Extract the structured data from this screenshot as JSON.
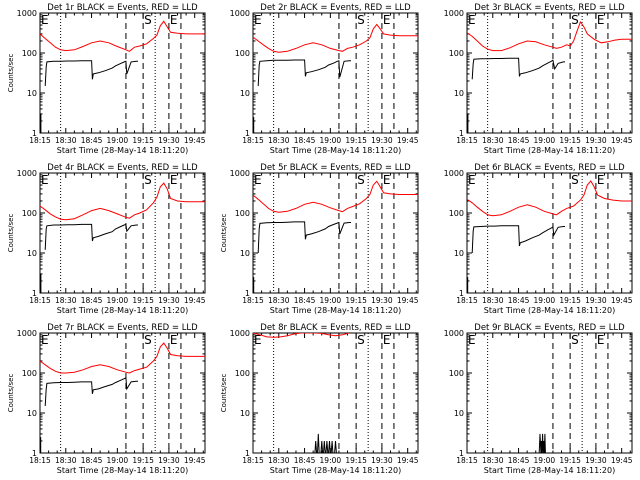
{
  "panels": [
    {
      "title": "Det 1r BLACK = Events, RED = LLD",
      "xlabel": "Start Time (28-May-14 18:11:20)",
      "ylabel": "Counts/sec"
    },
    {
      "title": "Det 2r BLACK = Events, RED = LLD",
      "xlabel": "Start Time (28-May-14 18:11:20)",
      "ylabel": ""
    },
    {
      "title": "Det 3r BLACK = Events, RED = LLD",
      "xlabel": "Start Time (28-May-14 18:11:20)",
      "ylabel": ""
    },
    {
      "title": "Det 4r BLACK = Events, RED = LLD",
      "xlabel": "Start Time (28-May-14 18:11:20)",
      "ylabel": "Counts/sec"
    },
    {
      "title": "Det 5r BLACK = Events, RED = LLD",
      "xlabel": "Start Time (28-May-14 18:11:20)",
      "ylabel": "Counts/sec"
    },
    {
      "title": "Det 6r BLACK = Events, RED = LLD",
      "xlabel": "Start Time (28-May-14 18:11:20)",
      "ylabel": ""
    },
    {
      "title": "Det 7r BLACK = Events, RED = LLD",
      "xlabel": "Start Time (28-May-14 18:11:20)",
      "ylabel": "Counts/sec"
    },
    {
      "title": "Det 8r BLACK = Events, RED = LLD",
      "xlabel": "Start Time (28-May-14 18:11:20)",
      "ylabel": "Counts/sec"
    },
    {
      "title": "Det 9r BLACK = Events, RED = LLD",
      "xlabel": "Start Time (28-May-14 18:11:20)",
      "ylabel": ""
    }
  ],
  "chart_data": {
    "type": "line",
    "colors": {
      "events": "#000000",
      "lld": "#ff0000",
      "markers": "#000000"
    },
    "x_tick_labels": [
      "18:15",
      "18:30",
      "18:45",
      "19:00",
      "19:15",
      "19:30",
      "19:45"
    ],
    "x_ticks_min": [
      0,
      15,
      30,
      45,
      60,
      75,
      90
    ],
    "xlim_min": [
      0,
      96
    ],
    "y_scale": "log",
    "ylim": [
      1,
      1000
    ],
    "y_tick_labels": [
      "1",
      "10",
      "100",
      "1000"
    ],
    "y_ticks": [
      1,
      10,
      100,
      1000
    ],
    "marker_labels": [
      "E",
      "S",
      "E"
    ],
    "markers_min": [
      0,
      60,
      75
    ],
    "dotted_lines_min": [
      12,
      67
    ],
    "dashed_lines_min": [
      50,
      82
    ],
    "lld_series": {
      "a": {
        "x": [
          0,
          3,
          6,
          9,
          12,
          15,
          20,
          25,
          30,
          35,
          40,
          45,
          50,
          52,
          55,
          58,
          62,
          66,
          68,
          70,
          72,
          74,
          76,
          80,
          85,
          90,
          96
        ],
        "y": [
          300,
          230,
          180,
          140,
          120,
          115,
          120,
          145,
          180,
          200,
          180,
          145,
          120,
          110,
          140,
          150,
          170,
          230,
          280,
          480,
          620,
          450,
          330,
          310,
          300,
          300,
          300
        ]
      },
      "b": {
        "x": [
          0,
          3,
          6,
          9,
          12,
          15,
          20,
          25,
          30,
          35,
          40,
          45,
          50,
          52,
          55,
          58,
          62,
          66,
          68,
          70,
          72,
          74,
          76,
          80,
          85,
          90,
          96
        ],
        "y": [
          250,
          200,
          160,
          130,
          110,
          105,
          110,
          130,
          160,
          180,
          160,
          130,
          115,
          110,
          130,
          140,
          160,
          200,
          240,
          400,
          520,
          400,
          300,
          280,
          270,
          270,
          270
        ]
      },
      "c": {
        "x": [
          0,
          3,
          6,
          9,
          12,
          15,
          20,
          25,
          30,
          35,
          40,
          45,
          50,
          52,
          55,
          58,
          60,
          62,
          64,
          66,
          68,
          70,
          74,
          78,
          82,
          86,
          90,
          96
        ],
        "y": [
          320,
          260,
          200,
          150,
          125,
          115,
          115,
          135,
          170,
          200,
          190,
          160,
          140,
          130,
          140,
          160,
          150,
          200,
          350,
          600,
          450,
          300,
          220,
          180,
          190,
          210,
          220,
          220
        ]
      },
      "d": {
        "x": [
          0,
          3,
          6,
          9,
          12,
          15,
          20,
          25,
          30,
          35,
          40,
          45,
          50,
          52,
          55,
          58,
          62,
          66,
          68,
          70,
          72,
          74,
          76,
          80,
          85,
          90,
          96
        ],
        "y": [
          150,
          120,
          95,
          80,
          70,
          68,
          72,
          90,
          115,
          130,
          115,
          95,
          78,
          74,
          90,
          100,
          120,
          180,
          250,
          450,
          560,
          400,
          230,
          200,
          190,
          190,
          190
        ]
      },
      "e": {
        "x": [
          0,
          3,
          6,
          9,
          12,
          15,
          20,
          25,
          30,
          35,
          40,
          45,
          50,
          52,
          55,
          58,
          62,
          66,
          68,
          70,
          72,
          74,
          76,
          80,
          85,
          90,
          96
        ],
        "y": [
          280,
          220,
          170,
          130,
          110,
          105,
          110,
          130,
          165,
          185,
          165,
          135,
          115,
          108,
          130,
          145,
          170,
          230,
          290,
          500,
          620,
          450,
          320,
          300,
          290,
          290,
          290
        ]
      },
      "f": {
        "x": [
          0,
          3,
          6,
          9,
          12,
          15,
          20,
          25,
          30,
          35,
          40,
          45,
          50,
          52,
          55,
          58,
          62,
          66,
          68,
          70,
          72,
          74,
          76,
          80,
          85,
          90,
          96
        ],
        "y": [
          220,
          180,
          140,
          110,
          90,
          85,
          90,
          110,
          140,
          160,
          140,
          110,
          95,
          90,
          110,
          130,
          150,
          210,
          280,
          500,
          630,
          450,
          280,
          230,
          210,
          200,
          200
        ]
      },
      "g": {
        "x": [
          0,
          3,
          6,
          9,
          12,
          15,
          20,
          25,
          30,
          35,
          40,
          45,
          50,
          52,
          55,
          58,
          62,
          66,
          68,
          70,
          72,
          74,
          76,
          80,
          85,
          90,
          96
        ],
        "y": [
          200,
          160,
          130,
          110,
          100,
          100,
          105,
          120,
          145,
          160,
          145,
          120,
          105,
          100,
          115,
          125,
          140,
          200,
          260,
          450,
          560,
          420,
          290,
          270,
          260,
          260,
          260
        ]
      },
      "h": {
        "x": [
          0,
          4,
          8,
          12,
          16,
          20,
          24,
          28,
          32,
          36,
          40,
          44,
          48,
          52,
          56
        ],
        "y": [
          1000,
          900,
          800,
          780,
          800,
          850,
          950,
          1000,
          1000,
          1000,
          980,
          900,
          850,
          900,
          1000
        ]
      }
    },
    "event_series": {
      "a": {
        "gap": [
          0.5,
          3
        ],
        "x": [
          3,
          3.6,
          4,
          8,
          12,
          16,
          20,
          24,
          25,
          28,
          30,
          30.5,
          31,
          34,
          38,
          42,
          44,
          47,
          49,
          50,
          50.5,
          53,
          56,
          57
        ],
        "y": [
          15,
          45,
          60,
          62,
          62,
          63,
          63,
          64,
          64,
          64,
          64,
          22,
          30,
          32,
          36,
          42,
          48,
          55,
          60,
          62,
          30,
          60,
          62,
          62
        ]
      },
      "b": {
        "gap": [
          0.4,
          2.5
        ],
        "x": [
          3,
          3.6,
          4,
          8,
          12,
          16,
          20,
          24,
          25,
          28,
          30,
          30.5,
          31,
          34,
          38,
          42,
          44,
          47,
          49,
          50,
          50.5,
          53,
          56,
          57
        ],
        "y": [
          15,
          50,
          62,
          64,
          66,
          66,
          66,
          67,
          67,
          67,
          67,
          26,
          32,
          34,
          38,
          44,
          50,
          56,
          62,
          64,
          25,
          62,
          64,
          64
        ]
      },
      "c": {
        "gap": [
          0.5,
          3
        ],
        "x": [
          3,
          3.6,
          4,
          8,
          12,
          16,
          20,
          24,
          25,
          28,
          30,
          30.5,
          31,
          34,
          38,
          42,
          44,
          47,
          49,
          50,
          51,
          53,
          56,
          57
        ],
        "y": [
          22,
          55,
          70,
          72,
          72,
          73,
          73,
          74,
          74,
          74,
          74,
          26,
          30,
          32,
          36,
          42,
          48,
          56,
          62,
          66,
          40,
          55,
          60,
          60
        ]
      },
      "d": {
        "gap": [
          0.5,
          3
        ],
        "x": [
          3,
          3.6,
          4,
          8,
          12,
          16,
          20,
          24,
          25,
          28,
          30,
          30.5,
          31,
          34,
          38,
          42,
          44,
          47,
          49,
          50,
          50.5,
          53,
          56,
          57
        ],
        "y": [
          12,
          40,
          48,
          50,
          50,
          51,
          51,
          52,
          52,
          52,
          52,
          20,
          24,
          26,
          30,
          34,
          40,
          46,
          50,
          52,
          35,
          48,
          50,
          50
        ]
      },
      "e": {
        "gap": [
          0.4,
          2.5
        ],
        "x": [
          3,
          3.6,
          4,
          8,
          12,
          16,
          20,
          24,
          25,
          28,
          30,
          30.5,
          31,
          34,
          38,
          42,
          44,
          47,
          49,
          50,
          50.5,
          53,
          56,
          57
        ],
        "y": [
          10,
          40,
          55,
          57,
          58,
          58,
          59,
          60,
          60,
          60,
          60,
          22,
          28,
          30,
          34,
          40,
          46,
          52,
          56,
          58,
          30,
          56,
          58,
          58
        ]
      },
      "f": {
        "gap": [
          0.4,
          2.5
        ],
        "x": [
          3,
          3.6,
          4,
          8,
          12,
          16,
          20,
          24,
          25,
          28,
          30,
          30.5,
          31,
          34,
          38,
          42,
          44,
          47,
          49,
          50,
          50.5,
          53,
          56,
          57
        ],
        "y": [
          10,
          36,
          45,
          46,
          47,
          47,
          48,
          48,
          48,
          48,
          48,
          15,
          18,
          20,
          24,
          28,
          32,
          38,
          42,
          45,
          28,
          44,
          46,
          46
        ]
      },
      "g": {
        "gap": [
          0.4,
          2.5
        ],
        "x": [
          3,
          3.6,
          4,
          8,
          12,
          16,
          20,
          24,
          25,
          28,
          30,
          30.5,
          31,
          34,
          38,
          42,
          44,
          47,
          49,
          50,
          50.5,
          53,
          56,
          57
        ],
        "y": [
          15,
          40,
          55,
          57,
          58,
          58,
          59,
          60,
          60,
          60,
          60,
          30,
          38,
          40,
          46,
          52,
          58,
          66,
          72,
          76,
          40,
          60,
          62,
          62
        ]
      },
      "h": {
        "x": [
          36,
          36.5,
          37,
          37.5,
          38,
          38.5,
          39,
          39.5,
          40,
          40.5,
          41,
          41.5,
          42,
          42.5,
          43,
          43.5,
          44,
          44.5,
          45,
          45.5,
          46,
          46.5,
          47,
          47.5,
          48,
          48.5,
          49,
          49.5,
          50
        ],
        "y": [
          1,
          2,
          1,
          1,
          3,
          1,
          1,
          1,
          2,
          1,
          1,
          2,
          1,
          1,
          2,
          1,
          1,
          2,
          1,
          1,
          2,
          1,
          1,
          1,
          2,
          1,
          1,
          1,
          1
        ]
      },
      "i": {
        "x": [
          42,
          42.5,
          43,
          43.3,
          43.6,
          44,
          44.3,
          44.6,
          45,
          45.3,
          45.6,
          46
        ],
        "y": [
          1,
          3,
          1,
          2,
          1,
          3,
          1,
          2,
          1,
          3,
          1,
          1
        ]
      }
    },
    "panel_series": [
      {
        "lld": "a",
        "events": "a"
      },
      {
        "lld": "b",
        "events": "b"
      },
      {
        "lld": "c",
        "events": "c"
      },
      {
        "lld": "d",
        "events": "d"
      },
      {
        "lld": "e",
        "events": "e"
      },
      {
        "lld": "f",
        "events": "f"
      },
      {
        "lld": "g",
        "events": "g"
      },
      {
        "lld": "h",
        "events": "h"
      },
      {
        "lld": "",
        "events": "i"
      }
    ]
  }
}
